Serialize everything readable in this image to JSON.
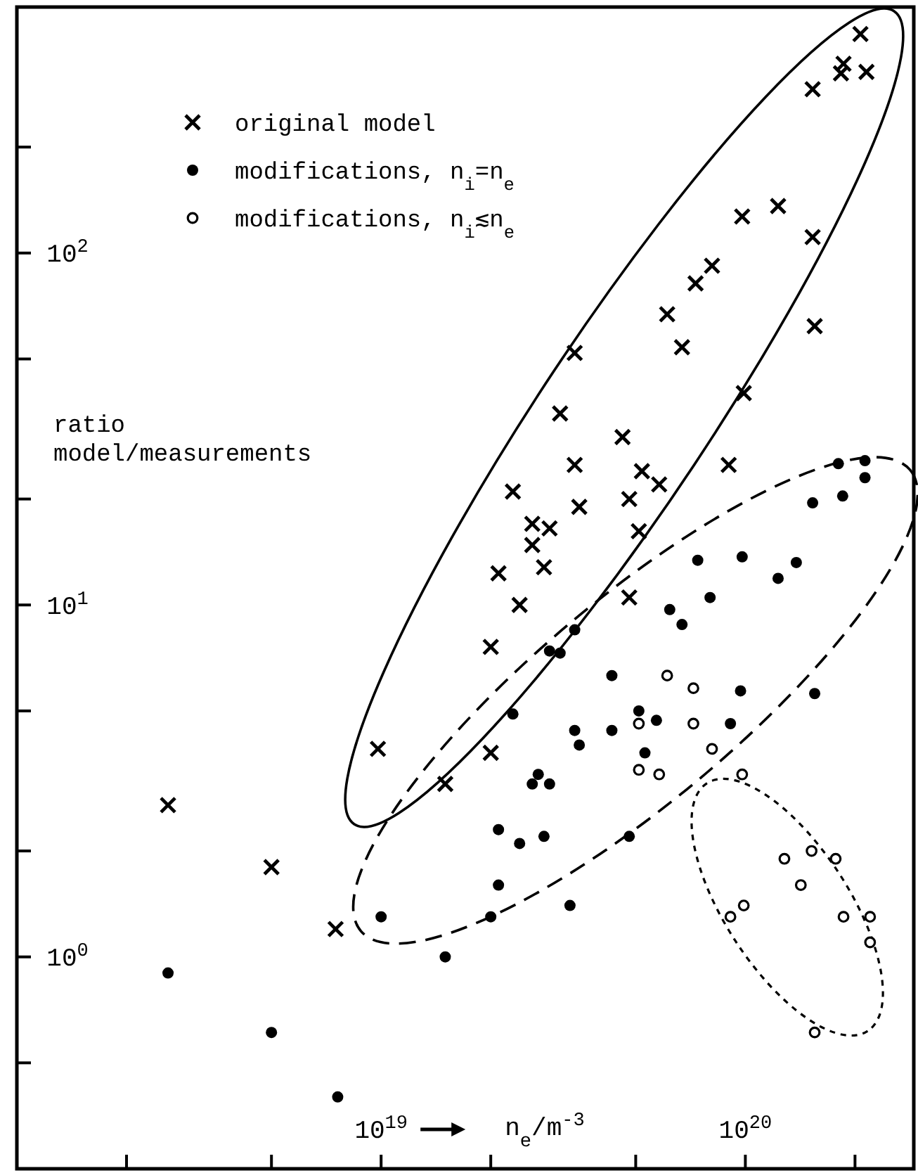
{
  "chart_data": {
    "type": "scatter",
    "xlabel": "n$_{e}$/m$^{-3}$",
    "ylabel": "ratio model/measurements",
    "log": "xy",
    "grid": false,
    "legend": "top left",
    "xlim": [
      1e+18,
      2.9e+20
    ],
    "ylim": [
      0.25,
      500
    ],
    "xticks": [
      {
        "value": 2e+18,
        "label": null
      },
      {
        "value": 5e+18,
        "label": null
      },
      {
        "value": 1e+19,
        "label": "10$^{19}$"
      },
      {
        "value": 2e+19,
        "label": null
      },
      {
        "value": 5e+19,
        "label": null
      },
      {
        "value": 1e+20,
        "label": "10$^{20}$"
      },
      {
        "value": 2e+20,
        "label": null
      }
    ],
    "yticks": [
      {
        "value": 0.5,
        "label": null
      },
      {
        "value": 1,
        "label": "10$^{0}$"
      },
      {
        "value": 2,
        "label": null
      },
      {
        "value": 5,
        "label": null
      },
      {
        "value": 10,
        "label": "10$^{1}$"
      },
      {
        "value": 20,
        "label": null
      },
      {
        "value": 50,
        "label": null
      },
      {
        "value": 100,
        "label": "10$^{2}$"
      },
      {
        "value": 200,
        "label": null
      }
    ],
    "series": [
      {
        "name": "original model",
        "color": "#000000",
        "marker": "cross",
        "x": [
          2.07e+20,
          1.86e+20,
          1.83e+20,
          2.15e+20,
          1.53e+20,
          9.8e+19,
          1.23e+20,
          1.53e+20,
          8.1e+19,
          7.3e+19,
          6.1e+19,
          6.7e+19,
          1.55e+20,
          3.4e+19,
          9.9e+19,
          3.1e+19,
          4.6e+19,
          3.4e+19,
          5.2e+19,
          5.8e+19,
          9e+19,
          2.3e+19,
          3.5e+19,
          4.8e+19,
          2.6e+19,
          2.9e+19,
          2.6e+19,
          5.1e+19,
          2.8e+19,
          2.1e+19,
          2.4e+19,
          4.8e+19,
          2e+19,
          9.8e+18,
          2e+19,
          1.5e+19,
          2.6e+18,
          5e+18,
          7.5e+18
        ],
        "values": [
          419,
          345,
          324,
          327,
          292,
          127,
          136,
          111,
          92,
          82,
          67,
          54,
          62,
          52,
          40,
          35,
          30,
          25,
          24,
          22,
          25,
          21,
          19,
          20,
          17,
          16.5,
          14.8,
          16.2,
          12.8,
          12.3,
          10,
          10.5,
          7.6,
          3.9,
          3.8,
          3.1,
          2.7,
          1.8,
          1.2
        ]
      },
      {
        "name": "modifications, n$_{i}$=n$_{e}$",
        "color": "#000000",
        "marker": "circle",
        "x": [
          1.8e+20,
          2.13e+20,
          2.13e+20,
          1.53e+20,
          1.85e+20,
          7.4e+19,
          9.8e+19,
          1.23e+20,
          1.38e+20,
          8e+19,
          6.2e+19,
          6.7e+19,
          3.4e+19,
          2.9e+19,
          3.1e+19,
          4.3e+19,
          9.7e+19,
          1.55e+20,
          2.3e+19,
          5.1e+19,
          5.7e+19,
          9.1e+19,
          3.4e+19,
          3.5e+19,
          4.3e+19,
          5.3e+19,
          2.7e+19,
          2.6e+19,
          2.9e+19,
          2.1e+19,
          2.4e+19,
          2.8e+19,
          4.8e+19,
          2.1e+19,
          1e+19,
          2e+19,
          3.3e+19,
          1.5e+19,
          2.6e+18,
          5e+18,
          7.6e+18
        ],
        "values": [
          25.2,
          25.7,
          23,
          19.5,
          20.4,
          13.4,
          13.7,
          11.9,
          13.2,
          10.5,
          9.7,
          8.8,
          8.5,
          7.4,
          7.3,
          6.3,
          5.7,
          5.6,
          4.9,
          5.0,
          4.7,
          4.6,
          4.4,
          4.0,
          4.4,
          3.8,
          3.3,
          3.1,
          3.1,
          2.3,
          2.1,
          2.2,
          2.2,
          1.6,
          1.3,
          1.3,
          1.4,
          1.0,
          0.9,
          0.61,
          0.4
        ]
      },
      {
        "name": "modifications, n$_{i}$≲n$_{e}$",
        "color": "#000000",
        "marker": "circle_open",
        "x": [
          6.1e+19,
          7.2e+19,
          5.1e+19,
          7.2e+19,
          8.1e+19,
          5.1e+19,
          5.8e+19,
          9.8e+19,
          1.28e+20,
          1.52e+20,
          1.77e+20,
          1.42e+20,
          9.1e+19,
          9.9e+19,
          1.86e+20,
          2.2e+20,
          2.2e+20,
          1.55e+20
        ],
        "values": [
          6.3,
          5.8,
          4.6,
          4.6,
          3.9,
          3.4,
          3.3,
          3.3,
          1.9,
          2.0,
          1.9,
          1.6,
          1.3,
          1.4,
          1.3,
          1.3,
          1.1,
          0.61
        ]
      }
    ]
  }
}
